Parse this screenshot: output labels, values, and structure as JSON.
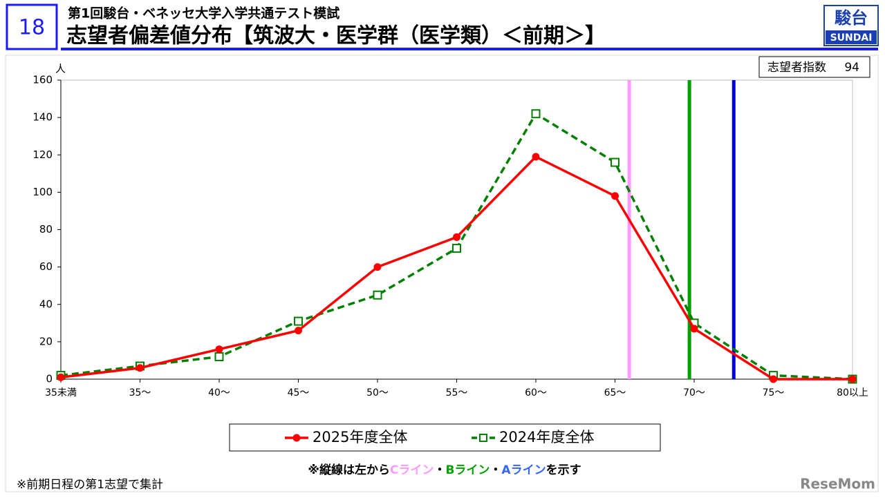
{
  "header": {
    "number": "18",
    "subtitle": "第1回駿台・ベネッセ大学入学共通テスト模試",
    "title": "志望者偏差値分布【筑波大・医学群（医学類）＜前期＞】",
    "logo_top": "駿台",
    "logo_bottom": "SUNDAI"
  },
  "chart_data": {
    "type": "line",
    "index_label": "志望者指数",
    "index_value": 94,
    "y_unit": "人",
    "categories": [
      "35未満",
      "35～",
      "40～",
      "45～",
      "50～",
      "55～",
      "60～",
      "65～",
      "70～",
      "75～",
      "80以上"
    ],
    "series": [
      {
        "name": "2025年度全体",
        "color": "#ff0000",
        "marker": "circle",
        "dashed": false,
        "values": [
          1,
          6,
          16,
          26,
          60,
          76,
          119,
          98,
          27,
          0,
          0
        ]
      },
      {
        "name": "2024年度全体",
        "color": "#008000",
        "marker": "square",
        "dashed": true,
        "values": [
          2,
          7,
          12,
          31,
          45,
          70,
          142,
          116,
          30,
          2,
          0
        ]
      }
    ],
    "reference_lines": [
      {
        "x": 65.9,
        "color": "#ff99ff"
      },
      {
        "x": 69.7,
        "color": "#00a000"
      },
      {
        "x": 72.5,
        "color": "#0000dd"
      }
    ],
    "ylim": [
      0,
      160
    ],
    "yticks": [
      0,
      20,
      40,
      60,
      80,
      100,
      120,
      140,
      160
    ],
    "note": [
      {
        "text": "※縦線は左から"
      },
      {
        "text": "Cライン",
        "color": "#ff99ff"
      },
      {
        "text": "・"
      },
      {
        "text": "Bライン",
        "color": "#00a000"
      },
      {
        "text": "・"
      },
      {
        "text": "Aライン",
        "color": "#3366ff"
      },
      {
        "text": "を示す"
      }
    ]
  },
  "footnote": "※前期日程の第1志望で集計",
  "watermark": "ReseMom"
}
